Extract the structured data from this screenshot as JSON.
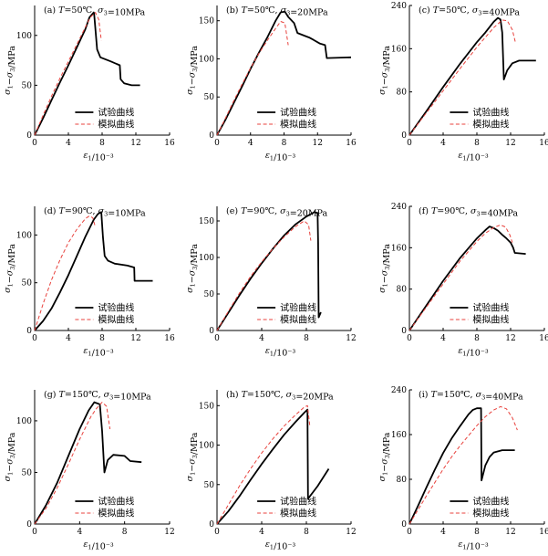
{
  "colors": {
    "experiment": "#000000",
    "simulation": "#e8413c",
    "axis": "#000000"
  },
  "chart_data": [
    {
      "type": "line",
      "title": "(a) T=50℃, σ3=10MPa",
      "xlabel": "ε1/10⁻³",
      "ylabel": "σ1−σ3/MPa",
      "xlim": [
        0,
        16
      ],
      "ylim": [
        0,
        130
      ],
      "xticks": [
        0,
        4,
        8,
        12,
        16
      ],
      "yticks": [
        0,
        50,
        100
      ],
      "legend": "bottom-right",
      "series": [
        {
          "name": "试验曲线",
          "style": "solid",
          "x": [
            0,
            1,
            2,
            3,
            4,
            5,
            6,
            6.5,
            7,
            7.05,
            7.4,
            7.8,
            9,
            10.1,
            10.2,
            10.6,
            11.5,
            12.5
          ],
          "y": [
            0,
            17,
            35,
            53,
            70,
            88,
            106,
            118,
            123,
            122,
            86,
            78,
            74,
            70,
            56,
            52,
            50,
            50
          ]
        },
        {
          "name": "模拟曲线",
          "style": "dashed",
          "x": [
            0,
            1,
            2,
            3,
            4,
            5,
            6,
            6.6,
            7.2,
            7.6,
            7.9
          ],
          "y": [
            0,
            20,
            39,
            57,
            74,
            91,
            108,
            118,
            123,
            116,
            95
          ]
        }
      ]
    },
    {
      "type": "line",
      "title": "(b) T=50℃, σ3=20MPa",
      "xlabel": "ε1/10⁻³",
      "ylabel": "σ1−σ3/MPa",
      "xlim": [
        0,
        16
      ],
      "ylim": [
        0,
        170
      ],
      "xticks": [
        0,
        4,
        8,
        12,
        16
      ],
      "yticks": [
        0,
        50,
        100,
        150
      ],
      "legend": "bottom-right",
      "series": [
        {
          "name": "试验曲线",
          "style": "solid",
          "x": [
            0,
            1,
            2,
            3,
            4,
            5,
            6,
            7,
            7.6,
            8.1,
            8.5,
            9.2,
            9.6,
            10.3,
            11,
            11.5,
            12.3,
            12.9,
            13.1,
            16
          ],
          "y": [
            0,
            20,
            42,
            64,
            87,
            108,
            128,
            150,
            161,
            162,
            155,
            147,
            134,
            131,
            128,
            125,
            120,
            118,
            101,
            102
          ]
        },
        {
          "name": "模拟曲线",
          "style": "dashed",
          "x": [
            0,
            1,
            2,
            3,
            4,
            5,
            6,
            7,
            7.6,
            8.1,
            8.5
          ],
          "y": [
            0,
            22,
            45,
            67,
            88,
            107,
            124,
            140,
            149,
            147,
            118
          ]
        }
      ]
    },
    {
      "type": "line",
      "title": "(c) T=50℃, σ3=40MPa",
      "xlabel": "ε1/10⁻³",
      "ylabel": "σ1−σ3/MPa",
      "xlim": [
        0,
        16
      ],
      "ylim": [
        0,
        240
      ],
      "xticks": [
        0,
        4,
        8,
        12,
        16
      ],
      "yticks": [
        0,
        80,
        160,
        240
      ],
      "legend": "bottom-right",
      "series": [
        {
          "name": "试验曲线",
          "style": "solid",
          "x": [
            0,
            2,
            4,
            6,
            8,
            9,
            10,
            10.5,
            10.8,
            11,
            11.2,
            11.6,
            12.2,
            13,
            15
          ],
          "y": [
            0,
            44,
            89,
            132,
            172,
            190,
            210,
            217,
            214,
            190,
            103,
            120,
            133,
            138,
            138
          ]
        },
        {
          "name": "模拟曲线",
          "style": "dashed",
          "x": [
            0,
            2,
            4,
            6,
            8,
            10,
            11,
            11.6,
            12.2,
            12.6
          ],
          "y": [
            0,
            41,
            82,
            123,
            163,
            199,
            213,
            212,
            195,
            170
          ]
        }
      ]
    },
    {
      "type": "line",
      "title": "(d) T=90℃, σ3=10MPa",
      "xlabel": "ε1/10⁻³",
      "ylabel": "σ1−σ3/MPa",
      "xlim": [
        0,
        16
      ],
      "ylim": [
        0,
        130
      ],
      "xticks": [
        0,
        4,
        8,
        12,
        16
      ],
      "yticks": [
        0,
        50,
        100
      ],
      "legend": "bottom-right",
      "series": [
        {
          "name": "试验曲线",
          "style": "solid",
          "x": [
            0,
            1,
            2,
            3,
            4,
            5,
            6,
            7,
            7.5,
            7.9,
            8.1,
            8.3,
            8.7,
            9.5,
            11,
            11.8,
            11.85,
            14
          ],
          "y": [
            0,
            10,
            23,
            40,
            58,
            78,
            98,
            116,
            122,
            124,
            98,
            78,
            73,
            70,
            68,
            66,
            52,
            52
          ]
        },
        {
          "name": "模拟曲线",
          "style": "dashed",
          "x": [
            0,
            1,
            2,
            3,
            4,
            5,
            6,
            6.5,
            6.9,
            7.2
          ],
          "y": [
            0,
            28,
            53,
            74,
            92,
            106,
            117,
            120,
            118,
            108
          ]
        }
      ]
    },
    {
      "type": "line",
      "title": "(e) T=90℃, σ3=20MPa",
      "xlabel": "ε1/10⁻³",
      "ylabel": "σ1−σ3/MPa",
      "xlim": [
        0,
        12
      ],
      "ylim": [
        0,
        170
      ],
      "xticks": [
        0,
        4,
        8,
        12
      ],
      "yticks": [
        0,
        50,
        100,
        150
      ],
      "legend": "bottom-right",
      "series": [
        {
          "name": "试验曲线",
          "style": "solid",
          "x": [
            0,
            1,
            2,
            3,
            4,
            5,
            6,
            7,
            8,
            8.7,
            9,
            9.05,
            9.1,
            9.3
          ],
          "y": [
            0,
            24,
            48,
            71,
            92,
            112,
            130,
            145,
            156,
            162,
            161,
            120,
            18,
            25
          ]
        },
        {
          "name": "模拟曲线",
          "style": "dashed",
          "x": [
            0,
            1,
            2,
            3,
            4,
            5,
            6,
            7,
            7.8,
            8.2,
            8.4
          ],
          "y": [
            0,
            26,
            51,
            74,
            94,
            112,
            128,
            142,
            150,
            145,
            123
          ]
        }
      ]
    },
    {
      "type": "line",
      "title": "(f) T=90℃, σ3=40MPa",
      "xlabel": "ε1/10⁻³",
      "ylabel": "σ1−σ3/MPa",
      "xlim": [
        0,
        16
      ],
      "ylim": [
        0,
        240
      ],
      "xticks": [
        0,
        4,
        8,
        12,
        16
      ],
      "yticks": [
        0,
        80,
        160,
        240
      ],
      "legend": "bottom-right",
      "series": [
        {
          "name": "试验曲线",
          "style": "solid",
          "x": [
            0,
            2,
            4,
            6,
            8,
            9,
            9.5,
            10,
            10.5,
            11,
            11.5,
            12,
            12.3,
            12.5,
            13.8
          ],
          "y": [
            0,
            48,
            96,
            140,
            178,
            194,
            201,
            198,
            193,
            185,
            178,
            170,
            160,
            150,
            148
          ]
        },
        {
          "name": "模拟曲线",
          "style": "dashed",
          "x": [
            0,
            2,
            4,
            6,
            8,
            9,
            10,
            10.8,
            11.4,
            11.9,
            12.2
          ],
          "y": [
            0,
            45,
            90,
            134,
            172,
            188,
            199,
            204,
            200,
            185,
            170
          ]
        }
      ]
    },
    {
      "type": "line",
      "title": "(g) T=150℃, σ3=10MPa",
      "xlabel": "ε1/10⁻³",
      "ylabel": "σ1−σ3/MPa",
      "xlim": [
        0,
        12
      ],
      "ylim": [
        0,
        130
      ],
      "xticks": [
        0,
        4,
        8,
        12
      ],
      "yticks": [
        0,
        50,
        100
      ],
      "legend": "bottom-right",
      "series": [
        {
          "name": "试验曲线",
          "style": "solid",
          "x": [
            0,
            1,
            2,
            3,
            4,
            4.8,
            5.3,
            5.8,
            6,
            6.2,
            6.5,
            7,
            8,
            8.5,
            9.5
          ],
          "y": [
            0,
            18,
            40,
            66,
            92,
            110,
            118,
            116,
            90,
            50,
            62,
            67,
            66,
            61,
            60
          ]
        },
        {
          "name": "模拟曲线",
          "style": "dashed",
          "x": [
            0,
            1,
            2,
            3,
            4,
            5,
            5.5,
            6,
            6.4,
            6.7
          ],
          "y": [
            0,
            15,
            35,
            58,
            82,
            104,
            112,
            118,
            114,
            92
          ]
        }
      ]
    },
    {
      "type": "line",
      "title": "(h) T=150℃, σ3=20MPa",
      "xlabel": "ε1/10⁻³",
      "ylabel": "σ1−σ3/MPa",
      "xlim": [
        0,
        12
      ],
      "ylim": [
        0,
        170
      ],
      "xticks": [
        0,
        4,
        8,
        12
      ],
      "yticks": [
        0,
        50,
        100,
        150
      ],
      "legend": "bottom-right",
      "series": [
        {
          "name": "试验曲线",
          "style": "solid",
          "x": [
            0,
            1,
            2,
            3,
            4,
            5,
            6,
            7,
            7.8,
            8.1,
            8.15,
            9,
            10
          ],
          "y": [
            0,
            16,
            35,
            56,
            76,
            95,
            113,
            129,
            141,
            145,
            32,
            48,
            70
          ]
        },
        {
          "name": "模拟曲线",
          "style": "dashed",
          "x": [
            0,
            1,
            2,
            3,
            4,
            5,
            6,
            7,
            7.8,
            8.1,
            8.3
          ],
          "y": [
            0,
            24,
            48,
            70,
            90,
            108,
            124,
            138,
            148,
            150,
            125
          ]
        }
      ]
    },
    {
      "type": "line",
      "title": "(i) T=150℃, σ3=40MPa",
      "xlabel": "ε1/10⁻³",
      "ylabel": "σ1−σ3/MPa",
      "xlim": [
        0,
        16
      ],
      "ylim": [
        0,
        240
      ],
      "xticks": [
        0,
        4,
        8,
        12,
        16
      ],
      "yticks": [
        0,
        80,
        160,
        240
      ],
      "legend": "bottom-right",
      "series": [
        {
          "name": "试验曲线",
          "style": "solid",
          "x": [
            0,
            1,
            2,
            3,
            4,
            5,
            6,
            7,
            7.5,
            8,
            8.5,
            8.55,
            9,
            9.5,
            10,
            11,
            12.5
          ],
          "y": [
            0,
            32,
            65,
            97,
            127,
            153,
            175,
            196,
            204,
            207,
            207,
            78,
            105,
            120,
            128,
            132,
            132
          ]
        },
        {
          "name": "模拟曲线",
          "style": "dashed",
          "x": [
            0,
            1,
            2,
            3,
            4,
            5,
            6,
            7,
            8,
            9,
            10,
            10.8,
            11.5,
            12.2,
            12.8
          ],
          "y": [
            0,
            25,
            50,
            74,
            98,
            120,
            140,
            158,
            176,
            192,
            204,
            210,
            206,
            190,
            168
          ]
        }
      ]
    }
  ]
}
